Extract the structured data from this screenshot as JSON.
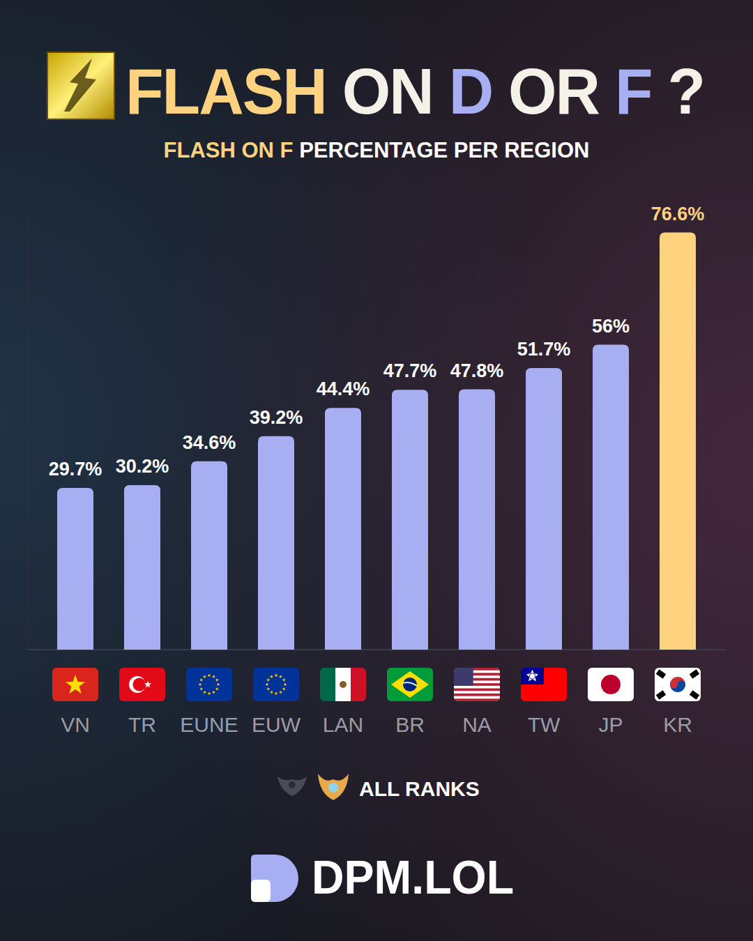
{
  "chart_data": {
    "type": "bar",
    "title": "FLASH ON D OR F ?",
    "subtitle": "FLASH ON F PERCENTAGE PER REGION",
    "categories": [
      "VN",
      "TR",
      "EUNE",
      "EUW",
      "LAN",
      "BR",
      "NA",
      "TW",
      "JP",
      "KR"
    ],
    "values": [
      29.7,
      30.2,
      34.6,
      39.2,
      44.4,
      47.7,
      47.8,
      51.7,
      56,
      76.6
    ],
    "value_labels": [
      "29.7%",
      "30.2%",
      "34.6%",
      "39.2%",
      "44.4%",
      "47.7%",
      "47.8%",
      "51.7%",
      "56%",
      "76.6%"
    ],
    "colors": [
      "#a8aef2",
      "#a8aef2",
      "#a8aef2",
      "#a8aef2",
      "#a8aef2",
      "#a8aef2",
      "#a8aef2",
      "#a8aef2",
      "#a8aef2",
      "#ffd27f"
    ],
    "ylim": [
      0,
      80
    ],
    "yticks": [
      0
    ],
    "grid": false,
    "data_labels": true,
    "tick_labels": "x",
    "annotations": [
      "ALL RANKS",
      "DPM.LOL"
    ]
  }
}
